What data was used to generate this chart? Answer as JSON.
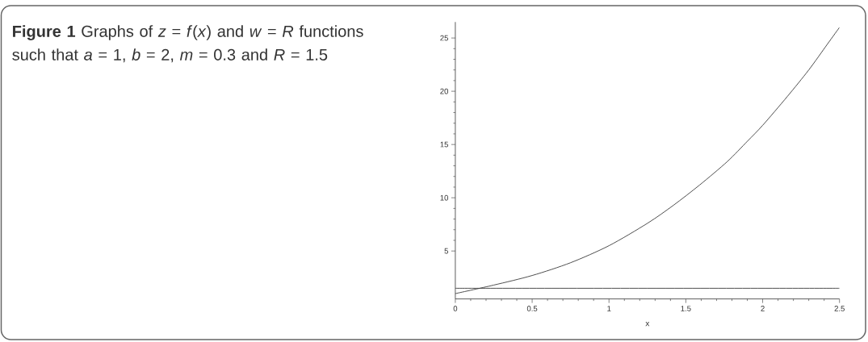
{
  "chart_data": {
    "type": "line",
    "title": "**Figure 1** Graphs of *z* = *f*(*x*) and *w* = *R* functions such that *a* = 1, *b* = 2, *m* = 0.3 and *R* = 1.5",
    "xlabel": "x",
    "xlim": [
      0,
      2.5
    ],
    "ylim": [
      0.5,
      26.5
    ],
    "xticks": [
      0,
      0.5,
      1,
      1.5,
      2,
      2.5
    ],
    "yticks": [
      5,
      10,
      15,
      20,
      25
    ],
    "line_style": "solid",
    "series": [
      {
        "color": "#3c3c3c",
        "x": [
          0,
          0.25,
          0.5,
          0.75,
          1,
          1.25,
          1.42,
          1.59,
          1.77,
          1.9,
          2.0,
          2.16,
          2.3,
          2.42,
          2.5
        ],
        "values": [
          1,
          1.8,
          2.7,
          3.9,
          5.5,
          7.6,
          9.3,
          11.2,
          13.4,
          15.3,
          16.8,
          19.5,
          22.0,
          24.4,
          26
        ]
      },
      {
        "color": "#3c3c3c",
        "x": [
          0,
          2.5
        ],
        "values": [
          1.5,
          1.5
        ]
      }
    ]
  }
}
